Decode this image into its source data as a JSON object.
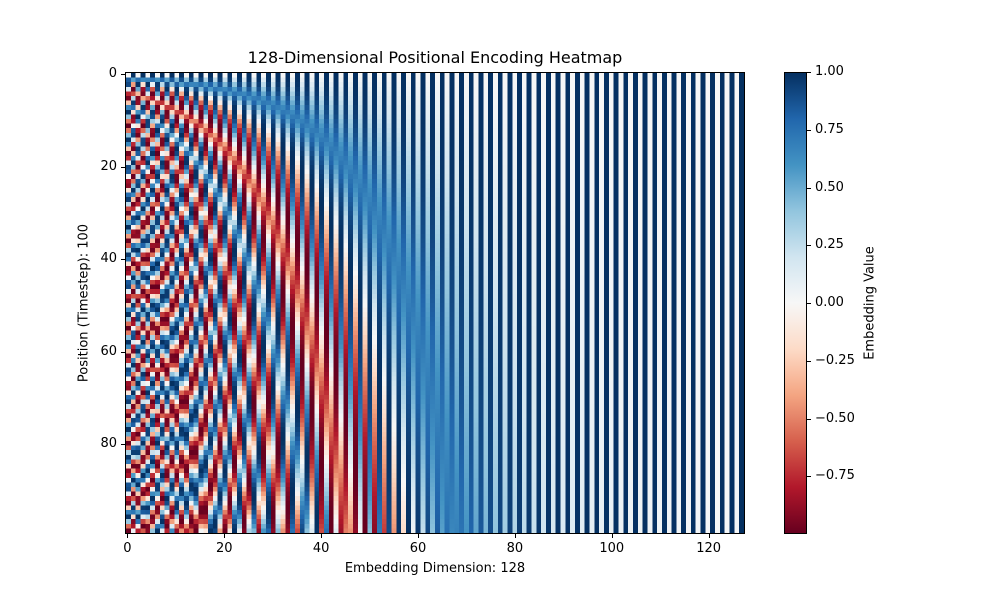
{
  "chart_data": {
    "type": "heatmap",
    "title": "128-Dimensional Positional Encoding Heatmap",
    "xlabel": "Embedding Dimension: 128",
    "ylabel": "Position (Timestep): 100",
    "colorbar_label": "Embedding Value",
    "colormap": "RdBu",
    "encoding": "sinusoidal: PE[pos,2i]=sin(pos/10000^(2i/d)), PE[pos,2i+1]=cos(pos/10000^(2i/d))",
    "n_positions": 100,
    "d_model": 128,
    "base": 10000,
    "vmin": -1.0,
    "vmax": 1.0,
    "xlim": [
      -0.5,
      127.5
    ],
    "ylim": [
      99.5,
      -0.5
    ],
    "x_ticks": [
      0,
      20,
      40,
      60,
      80,
      100,
      120
    ],
    "y_ticks": [
      0,
      20,
      40,
      60,
      80
    ],
    "colorbar_ticks": [
      1.0,
      0.75,
      0.5,
      0.25,
      0.0,
      -0.25,
      -0.5,
      -0.75
    ],
    "grid": false
  },
  "labels": {
    "x_ticks": [
      "0",
      "20",
      "40",
      "60",
      "80",
      "100",
      "120"
    ],
    "y_ticks": [
      "0",
      "20",
      "40",
      "60",
      "80"
    ],
    "colorbar_ticks": [
      "1.00",
      "0.75",
      "0.50",
      "0.25",
      "0.00",
      "−0.25",
      "−0.50",
      "−0.75"
    ]
  }
}
